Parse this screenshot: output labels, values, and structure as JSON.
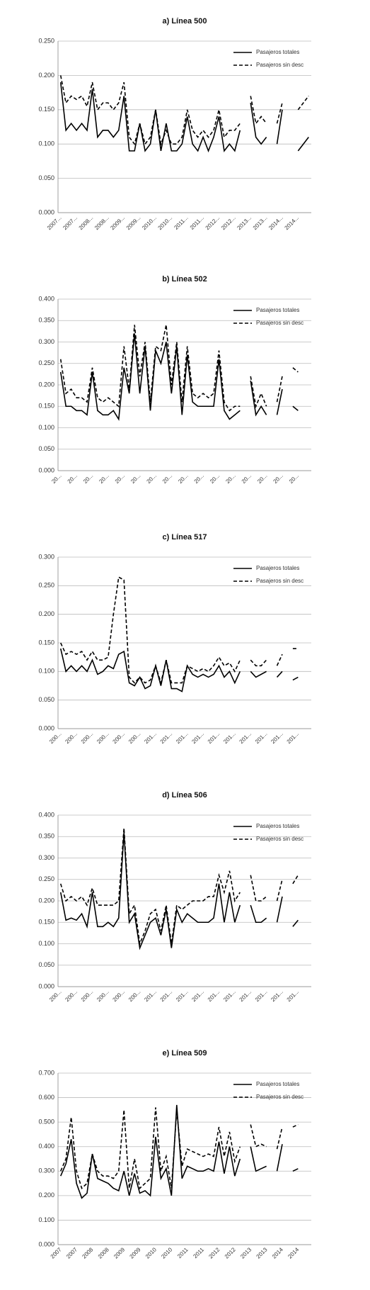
{
  "chart_data": [
    {
      "type": "line",
      "title": "a) Línea 500",
      "categories": [
        "2007...",
        null,
        null,
        "2007...",
        null,
        null,
        "2008...",
        null,
        null,
        "2008...",
        null,
        null,
        "2009...",
        null,
        null,
        "2009...",
        null,
        null,
        "2010...",
        null,
        null,
        "2010...",
        null,
        null,
        "2011...",
        null,
        null,
        "2011...",
        null,
        null,
        "2012...",
        null,
        null,
        "2012...",
        null,
        null,
        "2013...",
        null,
        null,
        "2013...",
        null,
        null,
        "2014...",
        null,
        null,
        "2014...",
        null,
        null
      ],
      "series": [
        {
          "name": "Pasajeros totales",
          "color": "#000000",
          "style": "solid",
          "values": [
            0.19,
            0.12,
            0.13,
            0.12,
            0.13,
            0.12,
            0.18,
            0.11,
            0.12,
            0.12,
            0.11,
            0.12,
            0.17,
            0.09,
            0.09,
            0.13,
            0.09,
            0.1,
            0.15,
            0.09,
            0.13,
            0.09,
            0.09,
            0.1,
            0.14,
            0.1,
            0.09,
            0.11,
            0.09,
            0.11,
            0.14,
            0.09,
            0.1,
            0.09,
            0.12,
            null,
            0.16,
            0.11,
            0.1,
            0.11,
            null,
            0.1,
            0.15,
            null,
            null,
            0.09,
            0.1,
            0.11
          ]
        },
        {
          "name": "Pasajeros sin desc",
          "color": "#000000",
          "style": "dashed",
          "values": [
            0.2,
            0.16,
            0.17,
            0.165,
            0.17,
            0.155,
            0.19,
            0.15,
            0.16,
            0.16,
            0.15,
            0.16,
            0.19,
            0.11,
            0.1,
            0.13,
            0.1,
            0.11,
            0.15,
            0.1,
            0.12,
            0.1,
            0.1,
            0.11,
            0.15,
            0.12,
            0.11,
            0.12,
            0.11,
            0.12,
            0.15,
            0.11,
            0.12,
            0.12,
            0.13,
            null,
            0.17,
            0.13,
            0.14,
            0.13,
            null,
            0.13,
            0.16,
            null,
            null,
            0.15,
            0.16,
            0.17
          ]
        }
      ],
      "ylim": [
        0,
        0.25
      ],
      "yticks": [
        {
          "value": 0,
          "label": "0.000"
        },
        {
          "value": 0.05,
          "label": "0.050"
        },
        {
          "value": 0.1,
          "label": "0.100"
        },
        {
          "value": 0.15,
          "label": "0.150"
        },
        {
          "value": 0.2,
          "label": "0.200"
        },
        {
          "value": 0.25,
          "label": "0.250"
        }
      ],
      "grid": true,
      "legend": "upper right"
    },
    {
      "type": "line",
      "title": "b) Línea 502",
      "categories": [
        "20...",
        null,
        null,
        "20...",
        null,
        null,
        "20...",
        null,
        null,
        "20...",
        null,
        null,
        "20...",
        null,
        null,
        "20...",
        null,
        null,
        "20...",
        null,
        null,
        "20...",
        null,
        null,
        "20...",
        null,
        null,
        "20...",
        null,
        null,
        "20...",
        null,
        null,
        "20...",
        null,
        null,
        "20...",
        null,
        null,
        "20...",
        null,
        null,
        "20...",
        null,
        null,
        "20...",
        null,
        null
      ],
      "series": [
        {
          "name": "Pasajeros totales",
          "color": "#000000",
          "style": "solid",
          "values": [
            0.23,
            0.15,
            0.15,
            0.14,
            0.14,
            0.13,
            0.23,
            0.14,
            0.13,
            0.13,
            0.14,
            0.12,
            0.24,
            0.18,
            0.32,
            0.18,
            0.29,
            0.14,
            0.28,
            0.25,
            0.3,
            0.18,
            0.29,
            0.13,
            0.27,
            0.16,
            0.15,
            0.15,
            0.15,
            0.15,
            0.26,
            0.14,
            0.12,
            0.13,
            0.14,
            null,
            0.21,
            0.13,
            0.15,
            0.13,
            null,
            0.13,
            0.19,
            null,
            0.15,
            0.14,
            null,
            0.14
          ]
        },
        {
          "name": "Pasajeros sin desc",
          "color": "#000000",
          "style": "dashed",
          "values": [
            0.26,
            0.18,
            0.19,
            0.17,
            0.17,
            0.16,
            0.24,
            0.17,
            0.16,
            0.17,
            0.16,
            0.15,
            0.29,
            0.19,
            0.34,
            0.22,
            0.3,
            0.16,
            0.29,
            0.28,
            0.34,
            0.2,
            0.3,
            0.16,
            0.29,
            0.18,
            0.17,
            0.18,
            0.17,
            0.18,
            0.28,
            0.16,
            0.14,
            0.15,
            0.15,
            null,
            0.22,
            0.15,
            0.18,
            0.15,
            null,
            0.16,
            0.22,
            null,
            0.24,
            0.23,
            null,
            0.22
          ]
        }
      ],
      "ylim": [
        0,
        0.4
      ],
      "yticks": [
        {
          "value": 0,
          "label": "0.000"
        },
        {
          "value": 0.05,
          "label": "0.050"
        },
        {
          "value": 0.1,
          "label": "0.100"
        },
        {
          "value": 0.15,
          "label": "0.150"
        },
        {
          "value": 0.2,
          "label": "0.200"
        },
        {
          "value": 0.25,
          "label": "0.250"
        },
        {
          "value": 0.3,
          "label": "0.300"
        },
        {
          "value": 0.35,
          "label": "0.350"
        },
        {
          "value": 0.4,
          "label": "0.400"
        }
      ],
      "grid": true,
      "legend": "upper right"
    },
    {
      "type": "line",
      "title": "c) Línea 517",
      "categories": [
        "200...",
        null,
        null,
        "200...",
        null,
        null,
        "200...",
        null,
        null,
        "200...",
        null,
        null,
        "200...",
        null,
        null,
        "200...",
        null,
        null,
        "201...",
        null,
        null,
        "201...",
        null,
        null,
        "201...",
        null,
        null,
        "201...",
        null,
        null,
        "201...",
        null,
        null,
        "201...",
        null,
        null,
        "201...",
        null,
        null,
        "201...",
        null,
        null,
        "201...",
        null,
        null,
        "201...",
        null,
        null
      ],
      "series": [
        {
          "name": "Pasajeros totales",
          "color": "#000000",
          "style": "solid",
          "values": [
            0.14,
            0.1,
            0.11,
            0.1,
            0.11,
            0.1,
            0.12,
            0.095,
            0.1,
            0.11,
            0.105,
            0.13,
            0.135,
            0.08,
            0.075,
            0.09,
            0.07,
            0.075,
            0.11,
            0.075,
            0.12,
            0.07,
            0.07,
            0.065,
            0.11,
            0.095,
            0.09,
            0.095,
            0.09,
            0.095,
            0.11,
            0.09,
            0.1,
            0.08,
            0.1,
            null,
            0.1,
            0.09,
            0.095,
            0.1,
            null,
            0.09,
            0.1,
            null,
            0.085,
            0.09,
            null,
            0.09
          ]
        },
        {
          "name": "Pasajeros sin desc",
          "color": "#000000",
          "style": "dashed",
          "values": [
            0.15,
            0.13,
            0.135,
            0.13,
            0.135,
            0.12,
            0.135,
            0.12,
            0.12,
            0.125,
            0.2,
            0.265,
            0.26,
            0.09,
            0.08,
            0.09,
            0.08,
            0.085,
            0.11,
            0.08,
            0.12,
            0.08,
            0.08,
            0.08,
            0.11,
            0.105,
            0.1,
            0.105,
            0.1,
            0.11,
            0.125,
            0.11,
            0.115,
            0.1,
            0.12,
            null,
            0.12,
            0.11,
            0.11,
            0.12,
            null,
            0.11,
            0.13,
            null,
            0.14,
            0.14,
            null,
            0.145
          ]
        }
      ],
      "ylim": [
        0,
        0.3
      ],
      "yticks": [
        {
          "value": 0,
          "label": "0.000"
        },
        {
          "value": 0.05,
          "label": "0.050"
        },
        {
          "value": 0.1,
          "label": "0.100"
        },
        {
          "value": 0.15,
          "label": "0.150"
        },
        {
          "value": 0.2,
          "label": "0.200"
        },
        {
          "value": 0.25,
          "label": "0.250"
        },
        {
          "value": 0.3,
          "label": "0.300"
        }
      ],
      "grid": true,
      "legend": "upper right"
    },
    {
      "type": "line",
      "title": "d) Línea 506",
      "categories": [
        "200...",
        null,
        null,
        "200...",
        null,
        null,
        "200...",
        null,
        null,
        "200...",
        null,
        null,
        "200...",
        null,
        null,
        "200...",
        null,
        null,
        "201...",
        null,
        null,
        "201...",
        null,
        null,
        "201...",
        null,
        null,
        "201...",
        null,
        null,
        "201...",
        null,
        null,
        "201...",
        null,
        null,
        "201...",
        null,
        null,
        "201...",
        null,
        null,
        "201...",
        null,
        null,
        "201...",
        null,
        null
      ],
      "series": [
        {
          "name": "Pasajeros totales",
          "color": "#000000",
          "style": "solid",
          "values": [
            0.22,
            0.155,
            0.16,
            0.155,
            0.17,
            0.14,
            0.22,
            0.14,
            0.14,
            0.15,
            0.14,
            0.16,
            0.36,
            0.15,
            0.17,
            0.09,
            0.12,
            0.15,
            0.16,
            0.12,
            0.18,
            0.09,
            0.18,
            0.15,
            0.17,
            0.16,
            0.15,
            0.15,
            0.15,
            0.16,
            0.24,
            0.15,
            0.22,
            0.15,
            0.19,
            null,
            0.19,
            0.15,
            0.15,
            0.16,
            null,
            0.15,
            0.21,
            null,
            0.14,
            0.155,
            null,
            0.17
          ]
        },
        {
          "name": "Pasajeros sin desc",
          "color": "#000000",
          "style": "dashed",
          "values": [
            0.24,
            0.2,
            0.21,
            0.2,
            0.21,
            0.19,
            0.23,
            0.19,
            0.19,
            0.19,
            0.19,
            0.2,
            0.37,
            0.17,
            0.19,
            0.1,
            0.13,
            0.17,
            0.18,
            0.13,
            0.19,
            0.1,
            0.19,
            0.18,
            0.19,
            0.2,
            0.2,
            0.2,
            0.21,
            0.21,
            0.26,
            0.22,
            0.27,
            0.2,
            0.22,
            null,
            0.26,
            0.2,
            0.2,
            0.21,
            null,
            0.2,
            0.25,
            null,
            0.24,
            0.26,
            null,
            0.26
          ]
        }
      ],
      "ylim": [
        0,
        0.4
      ],
      "yticks": [
        {
          "value": 0,
          "label": "0.000"
        },
        {
          "value": 0.05,
          "label": "0.050"
        },
        {
          "value": 0.1,
          "label": "0.100"
        },
        {
          "value": 0.15,
          "label": "0.150"
        },
        {
          "value": 0.2,
          "label": "0.200"
        },
        {
          "value": 0.25,
          "label": "0.250"
        },
        {
          "value": 0.3,
          "label": "0.300"
        },
        {
          "value": 0.35,
          "label": "0.350"
        },
        {
          "value": 0.4,
          "label": "0.400"
        }
      ],
      "grid": true,
      "legend": "upper right"
    },
    {
      "type": "line",
      "title": "e) Línea 509",
      "categories": [
        "2007",
        null,
        null,
        "2007",
        null,
        null,
        "2008",
        null,
        null,
        "2008",
        null,
        null,
        "2009",
        null,
        null,
        "2009",
        null,
        null,
        "2010",
        null,
        null,
        "2010",
        null,
        null,
        "2011",
        null,
        null,
        "2011",
        null,
        null,
        "2012",
        null,
        null,
        "2012",
        null,
        null,
        "2013",
        null,
        null,
        "2013",
        null,
        null,
        "2014",
        null,
        null,
        "2014",
        null,
        null
      ],
      "series": [
        {
          "name": "Pasajeros totales",
          "color": "#000000",
          "style": "solid",
          "values": [
            0.28,
            0.33,
            0.43,
            0.25,
            0.19,
            0.21,
            0.37,
            0.27,
            0.26,
            0.25,
            0.23,
            0.22,
            0.3,
            0.2,
            0.29,
            0.21,
            0.22,
            0.2,
            0.44,
            0.27,
            0.31,
            0.2,
            0.57,
            0.27,
            0.32,
            0.31,
            0.3,
            0.3,
            0.31,
            0.3,
            0.42,
            0.29,
            0.4,
            0.28,
            0.35,
            null,
            0.4,
            0.3,
            0.31,
            0.32,
            null,
            0.3,
            0.41,
            null,
            0.3,
            0.31,
            null,
            0.31
          ]
        },
        {
          "name": "Pasajeros sin desc",
          "color": "#000000",
          "style": "dashed",
          "values": [
            0.3,
            0.35,
            0.52,
            0.3,
            0.23,
            0.25,
            0.37,
            0.3,
            0.28,
            0.28,
            0.27,
            0.3,
            0.55,
            0.23,
            0.35,
            0.23,
            0.25,
            0.27,
            0.56,
            0.3,
            0.36,
            0.23,
            0.55,
            0.32,
            0.39,
            0.38,
            0.37,
            0.36,
            0.37,
            0.36,
            0.48,
            0.36,
            0.46,
            0.34,
            0.4,
            null,
            0.49,
            0.4,
            0.41,
            0.4,
            null,
            0.39,
            0.48,
            null,
            0.48,
            0.49,
            null,
            0.49
          ]
        }
      ],
      "ylim": [
        0,
        0.7
      ],
      "yticks": [
        {
          "value": 0,
          "label": "0.000"
        },
        {
          "value": 0.1,
          "label": "0.100"
        },
        {
          "value": 0.2,
          "label": "0.200"
        },
        {
          "value": 0.3,
          "label": "0.300"
        },
        {
          "value": 0.4,
          "label": "0.400"
        },
        {
          "value": 0.5,
          "label": "0.500"
        },
        {
          "value": 0.6,
          "label": "0.600"
        },
        {
          "value": 0.7,
          "label": "0.700"
        }
      ],
      "grid": true,
      "legend": "upper right"
    }
  ]
}
